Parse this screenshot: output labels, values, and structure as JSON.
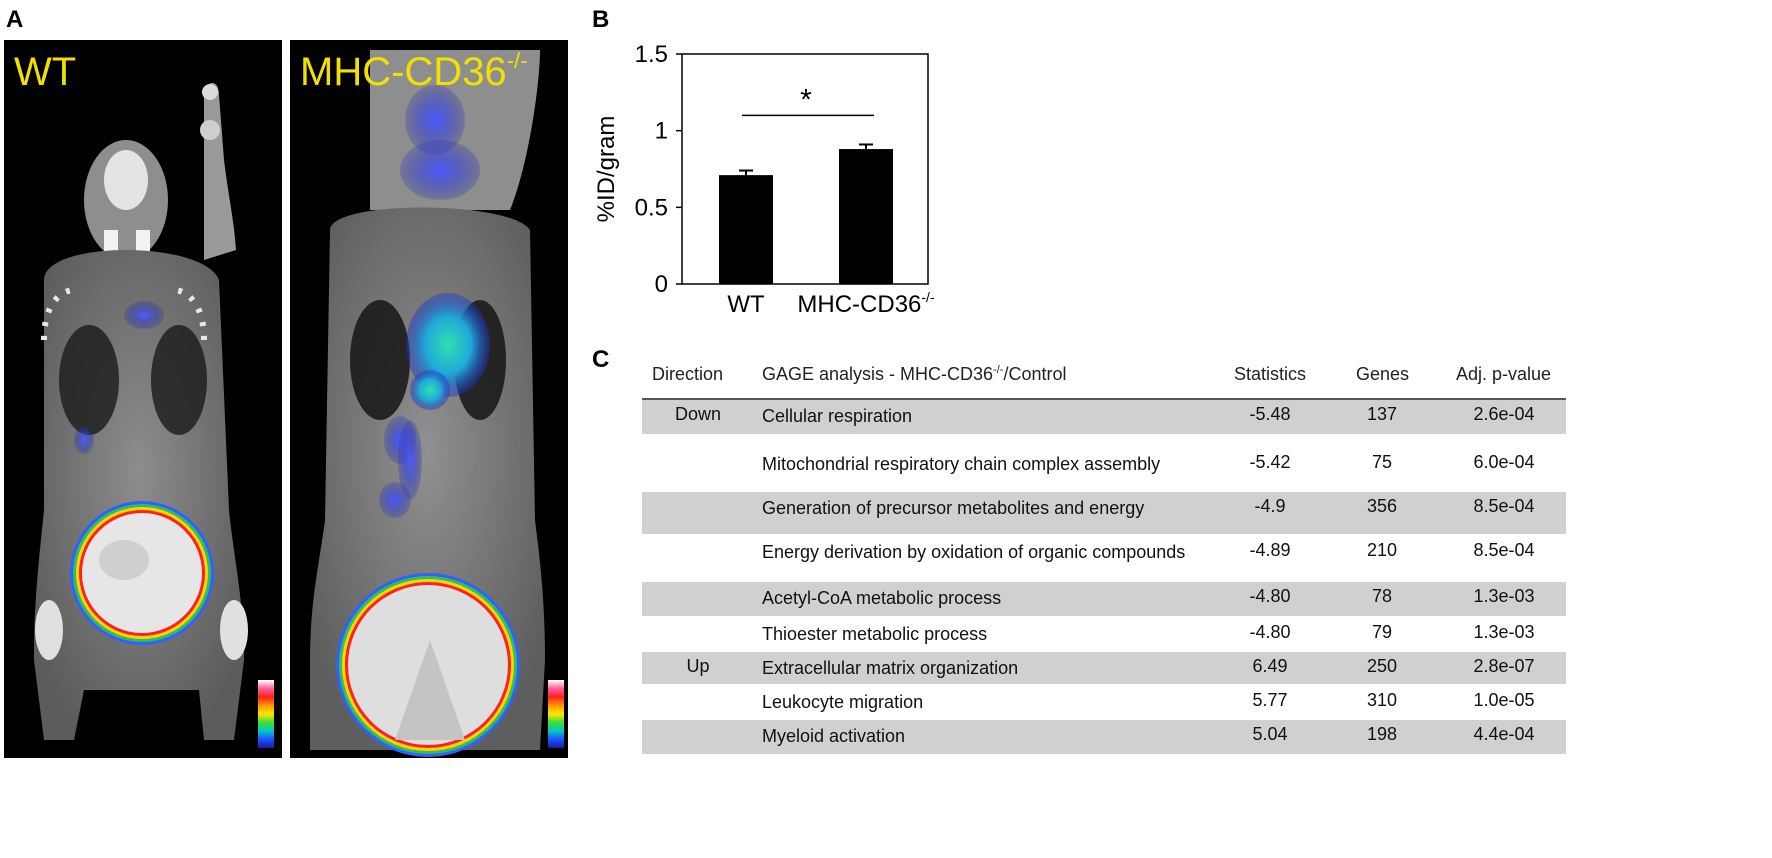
{
  "panels": {
    "a": {
      "letter": "A"
    },
    "b": {
      "letter": "B"
    },
    "c": {
      "letter": "C"
    }
  },
  "scans": [
    {
      "label_main": "WT",
      "label_sup": ""
    },
    {
      "label_main": "MHC-CD36",
      "label_sup": "-/-"
    }
  ],
  "colorbar_colors": [
    "#ffffff",
    "#ff5fa0",
    "#ff2020",
    "#ff9a00",
    "#ffe600",
    "#3cdc3c",
    "#00c8c8",
    "#1e50ff",
    "#1a1a9a"
  ],
  "chart_data": {
    "type": "bar",
    "categories": [
      "WT",
      "MHC-CD36-/-"
    ],
    "category_labels": [
      {
        "main": "WT",
        "sup": ""
      },
      {
        "main": "MHC-CD36",
        "sup": "-/-"
      }
    ],
    "values": [
      0.71,
      0.88
    ],
    "errors": [
      0.03,
      0.03
    ],
    "ylabel": "%ID/gram",
    "ylim": [
      0,
      1.5
    ],
    "yticks": [
      "0",
      "0.5",
      "1",
      "1.5"
    ],
    "bar_color": "#000000",
    "significance": "*",
    "grid": false
  },
  "table": {
    "headers": {
      "direction": "Direction",
      "analysis_main": "GAGE analysis - MHC-CD36",
      "analysis_sup": "-/-",
      "analysis_tail": "/Control",
      "statistics": "Statistics",
      "genes": "Genes",
      "pvalue": "Adj. p-value"
    },
    "rows": [
      {
        "direction": "Down",
        "description": "Cellular respiration",
        "statistics": "-5.48",
        "genes": "137",
        "pvalue": "2.6e-04"
      },
      {
        "direction": "",
        "description": "Mitochondrial respiratory chain complex assembly",
        "statistics": "-5.42",
        "genes": "75",
        "pvalue": "6.0e-04"
      },
      {
        "direction": "",
        "description": "Generation of precursor metabolites and energy",
        "statistics": "-4.9",
        "genes": "356",
        "pvalue": "8.5e-04"
      },
      {
        "direction": "",
        "description": "Energy derivation by oxidation of organic compounds",
        "statistics": "-4.89",
        "genes": "210",
        "pvalue": "8.5e-04"
      },
      {
        "direction": "",
        "description": "Acetyl-CoA metabolic process",
        "statistics": "-4.80",
        "genes": "78",
        "pvalue": "1.3e-03"
      },
      {
        "direction": "",
        "description": "Thioester metabolic process",
        "statistics": "-4.80",
        "genes": "79",
        "pvalue": "1.3e-03"
      },
      {
        "direction": "Up",
        "description": "Extracellular matrix organization",
        "statistics": "6.49",
        "genes": "250",
        "pvalue": "2.8e-07"
      },
      {
        "direction": "",
        "description": "Leukocyte migration",
        "statistics": "5.77",
        "genes": "310",
        "pvalue": "1.0e-05"
      },
      {
        "direction": "",
        "description": "Myeloid activation",
        "statistics": "5.04",
        "genes": "198",
        "pvalue": "4.4e-04"
      }
    ]
  }
}
